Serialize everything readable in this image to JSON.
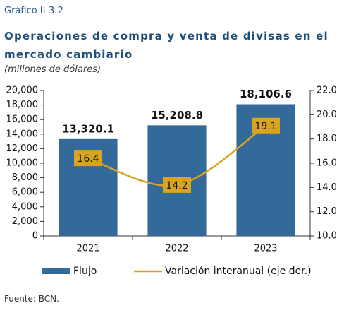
{
  "chart_data": {
    "type": "bar_line",
    "figure_label": "Gráfico II-3.2",
    "title": "Operaciones de compra y venta de divisas en el mercado cambiario",
    "subtitle": "(millones de dólares)",
    "source": "Fuente: BCN.",
    "categories": [
      "2021",
      "2022",
      "2023"
    ],
    "series": [
      {
        "name": "Flujo",
        "type": "bar",
        "color": "#336a99",
        "values": [
          13320.1,
          15208.8,
          18106.6
        ],
        "value_labels": [
          "13,320.1",
          "15,208.8",
          "18,106.6"
        ]
      },
      {
        "name": "Variación interanual (eje der.)",
        "type": "line",
        "axis": "y2",
        "color": "#d9a520",
        "values": [
          16.4,
          14.2,
          19.1
        ]
      }
    ],
    "ylim": [
      0,
      20000
    ],
    "yticks": [
      0,
      {
        "value": 2000,
        "label": "2,000"
      },
      {
        "value": 4000,
        "label": "4,000"
      },
      {
        "value": 6000,
        "label": "6,000"
      },
      {
        "value": 8000,
        "label": "8,000"
      },
      {
        "value": 10000,
        "label": "10,000"
      },
      {
        "value": 12000,
        "label": "12,000"
      },
      {
        "value": 14000,
        "label": "14,000"
      },
      {
        "value": 16000,
        "label": "16,000"
      },
      {
        "value": 18000,
        "label": "18,000"
      },
      {
        "value": 20000,
        "label": "20,000"
      }
    ],
    "y2lim": [
      10,
      22
    ],
    "y2ticks": [
      {
        "value": 10,
        "label": "10.0"
      },
      {
        "value": 12,
        "label": "12.0"
      },
      {
        "value": 14,
        "label": "14.0"
      },
      {
        "value": 16,
        "label": "16.0"
      },
      {
        "value": 18,
        "label": "18.0"
      },
      {
        "value": 20,
        "label": "20.0"
      },
      {
        "value": 22,
        "label": "22.0"
      }
    ],
    "grid": false,
    "legend": "bottom"
  }
}
